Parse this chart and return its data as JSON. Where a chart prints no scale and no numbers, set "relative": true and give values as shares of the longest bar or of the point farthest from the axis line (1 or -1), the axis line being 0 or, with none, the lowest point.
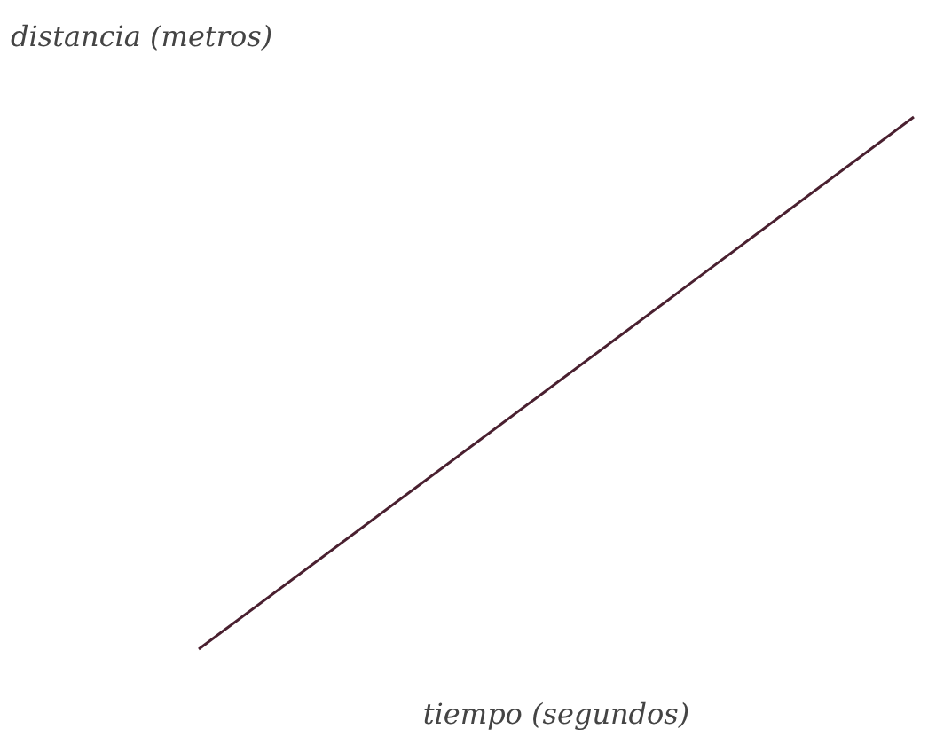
{
  "chart_data": {
    "type": "line",
    "relative": true,
    "ylabel": "distancia (metros)",
    "xlabel": "tiempo (segundos)",
    "categories": [
      null,
      null
    ],
    "series": [
      {
        "color": "#4a2030",
        "values": [
          0,
          1
        ]
      }
    ]
  }
}
